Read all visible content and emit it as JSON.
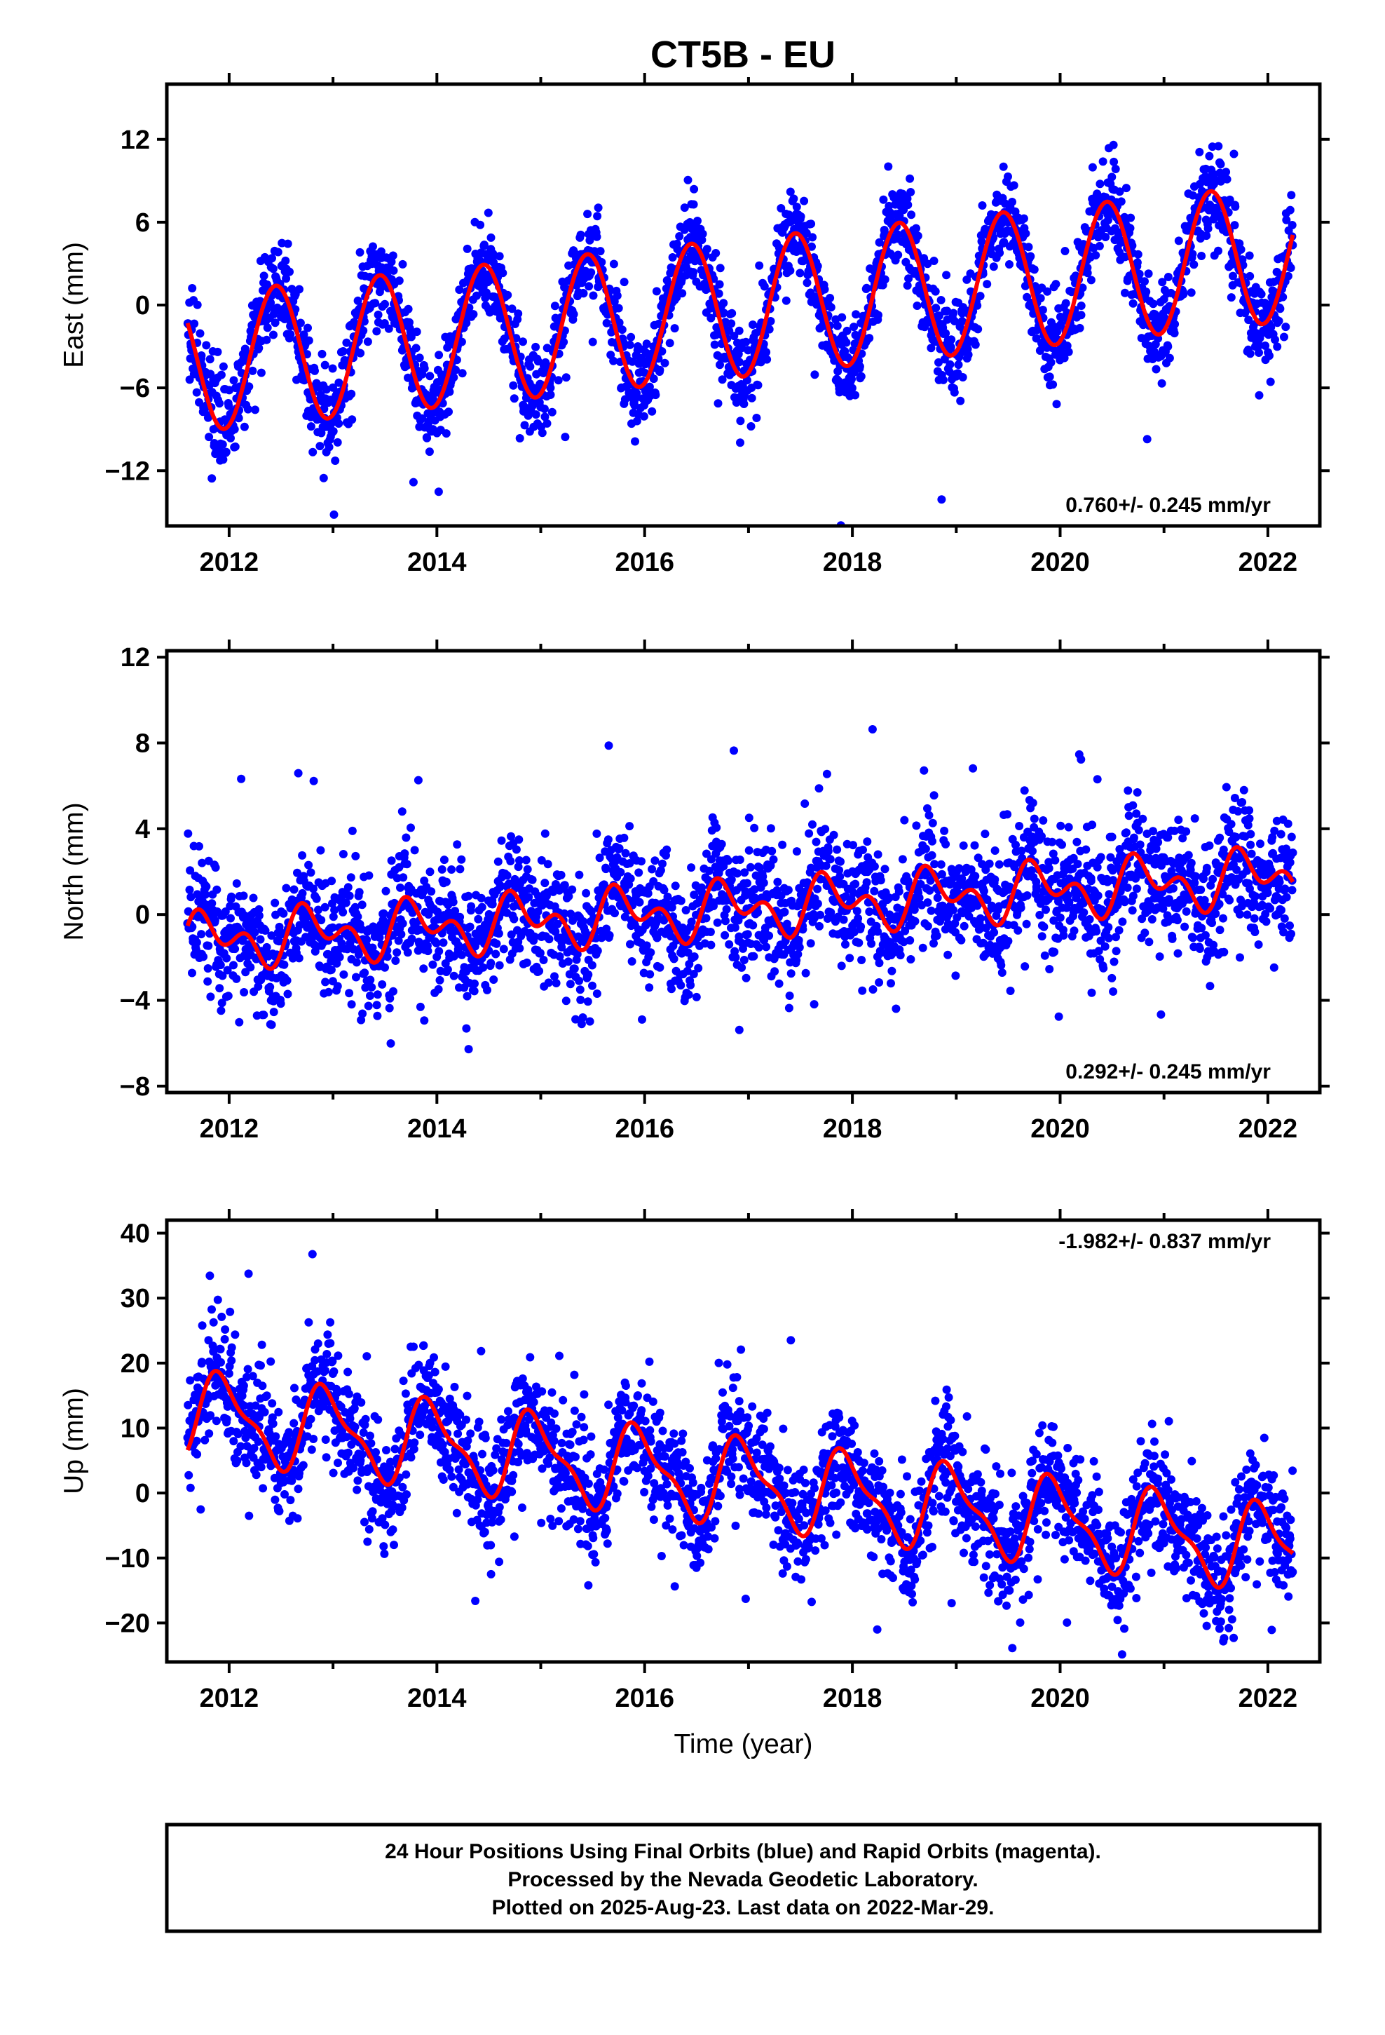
{
  "title": "CT5B - EU",
  "footer": {
    "lines": [
      "24 Hour Positions Using Final Orbits (blue) and Rapid Orbits (magenta).",
      "Processed by the Nevada Geodetic Laboratory.",
      "Plotted on 2025-Aug-23. Last data on 2022-Mar-29."
    ]
  },
  "colors": {
    "points": "#0000ff",
    "model": "#ff0000",
    "frame": "#000000"
  },
  "chart_data": [
    {
      "type": "scatter",
      "ylabel": "East (mm)",
      "xlabel": "",
      "xlim": [
        2011.4,
        2022.5
      ],
      "ylim": [
        -16,
        16
      ],
      "yticks": [
        -12,
        -6,
        0,
        6,
        12
      ],
      "xticks": [
        2012,
        2014,
        2016,
        2018,
        2020,
        2022
      ],
      "rate_label": "0.760+/- 0.245 mm/yr",
      "data_range": [
        2011.6,
        2022.24
      ],
      "model": {
        "trend_at_2016": -0.9,
        "rate": 0.76,
        "annual_amp": 5.0,
        "annual_phase": 2011.2,
        "semi_amp": 0.0,
        "semi_phase": 0.0
      },
      "scatter_sd": 1.6,
      "point_count": 2600
    },
    {
      "type": "scatter",
      "ylabel": "North (mm)",
      "xlabel": "",
      "xlim": [
        2011.4,
        2022.5
      ],
      "ylim": [
        -8.3,
        12.3
      ],
      "yticks": [
        -8,
        -4,
        0,
        4,
        8,
        12
      ],
      "xticks": [
        2012,
        2014,
        2016,
        2018,
        2020,
        2022
      ],
      "rate_label": "0.292+/- 0.245 mm/yr",
      "data_range": [
        2011.6,
        2022.24
      ],
      "model": {
        "trend_at_2016": 0.0,
        "rate": 0.29,
        "annual_amp": 0.9,
        "annual_phase": 2011.55,
        "semi_amp": 0.8,
        "semi_phase": 2011.55
      },
      "scatter_sd": 1.4,
      "point_count": 2600
    },
    {
      "type": "scatter",
      "ylabel": "Up (mm)",
      "xlabel": "Time (year)",
      "xlim": [
        2011.4,
        2022.5
      ],
      "ylim": [
        -26,
        42
      ],
      "yticks": [
        -20,
        -10,
        0,
        10,
        20,
        30,
        40
      ],
      "xticks": [
        2012,
        2014,
        2016,
        2018,
        2020,
        2022
      ],
      "rate_label": "-1.982+/- 0.837 mm/yr",
      "data_range": [
        2011.6,
        2022.24
      ],
      "model": {
        "trend_at_2016": 3.5,
        "rate": -1.98,
        "annual_amp": 6.0,
        "annual_phase": 2011.7,
        "semi_amp": 2.2,
        "semi_phase": 2011.7
      },
      "scatter_sd": 4.5,
      "point_count": 2600
    }
  ]
}
